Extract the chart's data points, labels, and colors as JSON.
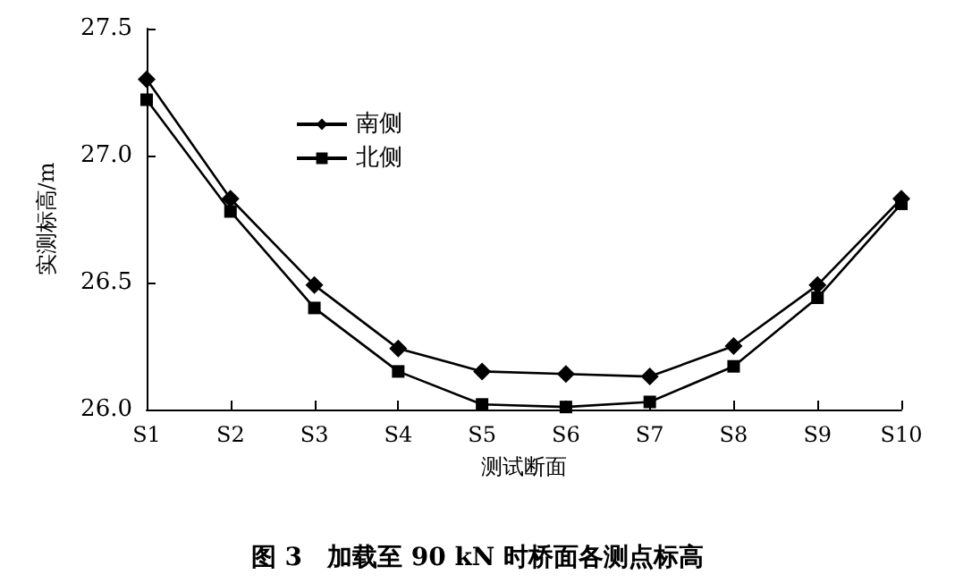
{
  "chart_data": {
    "type": "line",
    "title": "图 3　加载至 90 kN 时桥面各测点标高",
    "xlabel": "测试断面",
    "ylabel": "实测标高/m",
    "categories": [
      "S1",
      "S2",
      "S3",
      "S4",
      "S5",
      "S6",
      "S7",
      "S8",
      "S9",
      "S10"
    ],
    "series": [
      {
        "name": "南侧",
        "color": "#000000",
        "marker": "diamond",
        "values": [
          27.3,
          26.83,
          26.49,
          26.24,
          26.15,
          26.14,
          26.13,
          26.25,
          26.49,
          26.83
        ]
      },
      {
        "name": "北侧",
        "color": "#000000",
        "marker": "square",
        "values": [
          27.22,
          26.78,
          26.4,
          26.15,
          26.02,
          26.01,
          26.03,
          26.17,
          26.44,
          26.81
        ]
      }
    ],
    "ylim": [
      26.0,
      27.5
    ],
    "yticks": [
      {
        "value": 26.0,
        "label": "26.0"
      },
      {
        "value": 26.5,
        "label": "26.5"
      },
      {
        "value": 27.0,
        "label": "27.0"
      },
      {
        "value": 27.5,
        "label": "27.5"
      }
    ],
    "grid": false,
    "legend": "top left",
    "line_style": "solid"
  }
}
